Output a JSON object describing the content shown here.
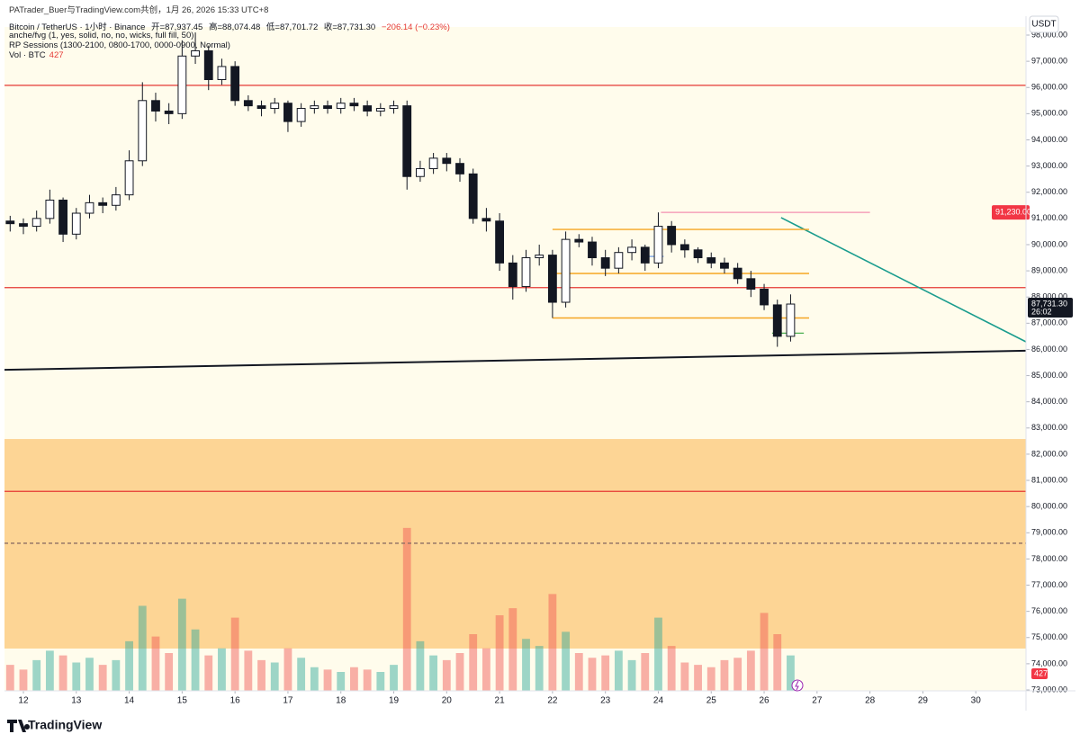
{
  "chart_data": {
    "type": "candlestick",
    "attribution": "PATrader_Buer与TradingView.com共创，1月 26, 2026 15:33 UTC+8",
    "symbol": "Bitcoin / TetherUS · 1小时 · Binance",
    "ohlc_text": [
      "开=87,937.45",
      "高=88,074.48",
      "低=87,701.72",
      "收=87,731.30"
    ],
    "change_text": "−206.14 (−0.23%)",
    "indicators": [
      "anche/fvg (1, yes, solid, no, no, wicks, full fill, 50)",
      "RP Sessions (1300-2100, 0800-1700, 0000-0900, Normal)"
    ],
    "volume_title": "Vol · BTC",
    "volume_now": 427,
    "currency": "USDT",
    "brand": "TradingView",
    "xlim": [
      11.643,
      30.949
    ],
    "xticks": [
      12,
      13,
      14,
      15,
      16,
      17,
      18,
      19,
      20,
      21,
      22,
      23,
      24,
      25,
      26,
      27,
      28,
      29,
      30
    ],
    "ylim": [
      72966,
      98309
    ],
    "yticks": [
      {
        "value": 98000,
        "label": "98,000.00"
      },
      {
        "value": 97000,
        "label": "97,000.00"
      },
      {
        "value": 96000,
        "label": "96,000.00"
      },
      {
        "value": 95000,
        "label": "95,000.00"
      },
      {
        "value": 94000,
        "label": "94,000.00"
      },
      {
        "value": 93000,
        "label": "93,000.00"
      },
      {
        "value": 92000,
        "label": "92,000.00"
      },
      {
        "value": 91000,
        "label": "91,000.00"
      },
      {
        "value": 90000,
        "label": "90,000.00"
      },
      {
        "value": 89000,
        "label": "89,000.00"
      },
      {
        "value": 88000,
        "label": "88,000.00"
      },
      {
        "value": 87000,
        "label": "87,000.00"
      },
      {
        "value": 86000,
        "label": "86,000.00"
      },
      {
        "value": 85000,
        "label": "85,000.00"
      },
      {
        "value": 84000,
        "label": "84,000.00"
      },
      {
        "value": 83000,
        "label": "83,000.00"
      },
      {
        "value": 82000,
        "label": "82,000.00"
      },
      {
        "value": 81000,
        "label": "81,000.00"
      },
      {
        "value": 80000,
        "label": "80,000.00"
      },
      {
        "value": 79000,
        "label": "79,000.00"
      },
      {
        "value": 78000,
        "label": "78,000.00"
      },
      {
        "value": 77000,
        "label": "77,000.00"
      },
      {
        "value": 76000,
        "label": "76,000.00"
      },
      {
        "value": 75000,
        "label": "75,000.00"
      },
      {
        "value": 74000,
        "label": "74,000.00"
      },
      {
        "value": 73000,
        "label": "73,000.00"
      }
    ],
    "x": [
      11.75,
      12,
      12.25,
      12.5,
      12.75,
      13,
      13.25,
      13.5,
      13.75,
      14,
      14.25,
      14.5,
      14.75,
      15,
      15.25,
      15.5,
      15.75,
      16,
      16.25,
      16.5,
      16.75,
      17,
      17.25,
      17.5,
      17.75,
      18,
      18.25,
      18.5,
      18.75,
      19,
      19.25,
      19.5,
      19.75,
      20,
      20.25,
      20.5,
      20.75,
      21,
      21.25,
      21.5,
      21.75,
      22,
      22.25,
      22.5,
      22.75,
      23,
      23.25,
      23.5,
      23.75,
      24,
      24.25,
      24.5,
      24.75,
      25,
      25.25,
      25.5,
      25.75,
      26,
      26.25,
      26.5
    ],
    "open": [
      90900,
      90800,
      90700,
      91000,
      91700,
      90400,
      91200,
      91600,
      91500,
      91900,
      93200,
      95500,
      95100,
      95000,
      97200,
      97400,
      96300,
      96800,
      95500,
      95300,
      95200,
      95400,
      94700,
      95200,
      95300,
      95200,
      95400,
      95300,
      95100,
      95200,
      95300,
      92600,
      92900,
      93300,
      93100,
      92700,
      91000,
      90900,
      89300,
      88400,
      89500,
      89600,
      87800,
      90200,
      90100,
      89500,
      89100,
      89700,
      89900,
      89300,
      90700,
      90000,
      89800,
      89500,
      89300,
      89100,
      88700,
      88300,
      87700,
      86500
    ],
    "high": [
      91100,
      91000,
      91300,
      92100,
      91800,
      91400,
      91900,
      91800,
      92200,
      93600,
      96200,
      95800,
      95400,
      97800,
      98100,
      97600,
      97100,
      97000,
      95700,
      95500,
      95600,
      95500,
      95400,
      95500,
      95500,
      95600,
      95600,
      95500,
      95400,
      95500,
      95500,
      93200,
      93500,
      93500,
      93300,
      92900,
      91400,
      91200,
      89600,
      89800,
      90000,
      89800,
      90500,
      90400,
      90300,
      89800,
      89900,
      90200,
      90000,
      91230,
      90900,
      90200,
      89900,
      89700,
      89500,
      89300,
      89000,
      88500,
      87900,
      88100
    ],
    "low": [
      90500,
      90400,
      90500,
      90800,
      90100,
      90200,
      91000,
      91200,
      91300,
      91700,
      93000,
      94700,
      94600,
      94800,
      96900,
      95900,
      96100,
      95300,
      95100,
      94900,
      95000,
      94300,
      94500,
      95000,
      95000,
      95000,
      95100,
      94900,
      94900,
      95000,
      92100,
      92400,
      92700,
      92800,
      92400,
      90800,
      90500,
      89000,
      87900,
      88200,
      89200,
      87200,
      87600,
      89900,
      89200,
      88800,
      88900,
      89400,
      89000,
      89100,
      89700,
      89500,
      89300,
      89100,
      88900,
      88500,
      88000,
      87500,
      86100,
      86300
    ],
    "close": [
      90800,
      90700,
      91000,
      91700,
      90400,
      91200,
      91600,
      91500,
      91900,
      93200,
      95500,
      95100,
      95000,
      97200,
      97400,
      96300,
      96800,
      95500,
      95300,
      95200,
      95400,
      94700,
      95200,
      95300,
      95200,
      95400,
      95300,
      95100,
      95200,
      95300,
      92600,
      92900,
      93300,
      93100,
      92700,
      91000,
      90900,
      89300,
      88400,
      89500,
      89600,
      87800,
      90200,
      90100,
      89500,
      89100,
      89700,
      89900,
      89300,
      90700,
      90000,
      89800,
      89500,
      89300,
      89100,
      88700,
      88300,
      87700,
      86500,
      87731.3
    ],
    "volume": [
      2200,
      1800,
      2600,
      3400,
      3000,
      2400,
      2800,
      2200,
      2600,
      4200,
      7200,
      4600,
      3200,
      7800,
      5200,
      3000,
      3600,
      6200,
      3400,
      2600,
      2400,
      3600,
      2800,
      2000,
      1800,
      1600,
      2000,
      1800,
      1600,
      2200,
      13800,
      4200,
      3000,
      2600,
      3200,
      4800,
      3600,
      6400,
      7000,
      4400,
      3800,
      8200,
      5000,
      3200,
      2800,
      3000,
      3400,
      2600,
      3200,
      6200,
      3800,
      2400,
      2200,
      2000,
      2600,
      2800,
      3400,
      6600,
      4800,
      3000
    ],
    "vlim": [
      0,
      16000
    ],
    "up_color": "#ffffff",
    "down_color": "#131722",
    "vol_up_color": "#26a69a",
    "vol_down_color": "#ef5350",
    "zones": [
      {
        "from": 74580,
        "to": 82580,
        "color": "#fdd595"
      }
    ],
    "levels": [
      {
        "value": 96080,
        "color": "#e53935",
        "dashed": false
      },
      {
        "value": 88360,
        "color": "#e53935",
        "dashed": false
      },
      {
        "value": 80580,
        "color": "#e53935",
        "dashed": false
      },
      {
        "value": 78600,
        "color": "#8d6e63",
        "dashed": true
      }
    ],
    "segments": [
      {
        "x": [
          11.643,
          30.949
        ],
        "y": [
          85220,
          85950
        ],
        "color": "#131722",
        "width": 2
      },
      {
        "x": [
          26.32,
          30.949
        ],
        "y": [
          91030,
          86290
        ],
        "color": "#1a9c8e",
        "width": 1.6
      },
      {
        "x": [
          22.0,
          26.85
        ],
        "y": [
          90580,
          90580
        ],
        "color": "#f5a623",
        "width": 1.4
      },
      {
        "x": [
          22.0,
          26.85
        ],
        "y": [
          88900,
          88900
        ],
        "color": "#f5a623",
        "width": 1.4
      },
      {
        "x": [
          22.0,
          26.85
        ],
        "y": [
          87200,
          87200
        ],
        "color": "#f5a623",
        "width": 1.4
      },
      {
        "x": [
          26.15,
          26.75
        ],
        "y": [
          86620,
          86620
        ],
        "color": "#4caf50",
        "width": 1.2
      },
      {
        "x": [
          23.75,
          24.1
        ],
        "y": [
          89550,
          89550
        ],
        "color": "#5c8ee6",
        "width": 1.2
      },
      {
        "x": [
          24.05,
          28.0
        ],
        "y": [
          91230,
          91230
        ],
        "color": "#f48fb1",
        "width": 1.2
      }
    ],
    "ray_tag": {
      "value": 91230,
      "label": "91,230.00"
    },
    "price_tag": {
      "value": 87731.3,
      "label": "87,731.30",
      "countdown": "26:02"
    }
  }
}
